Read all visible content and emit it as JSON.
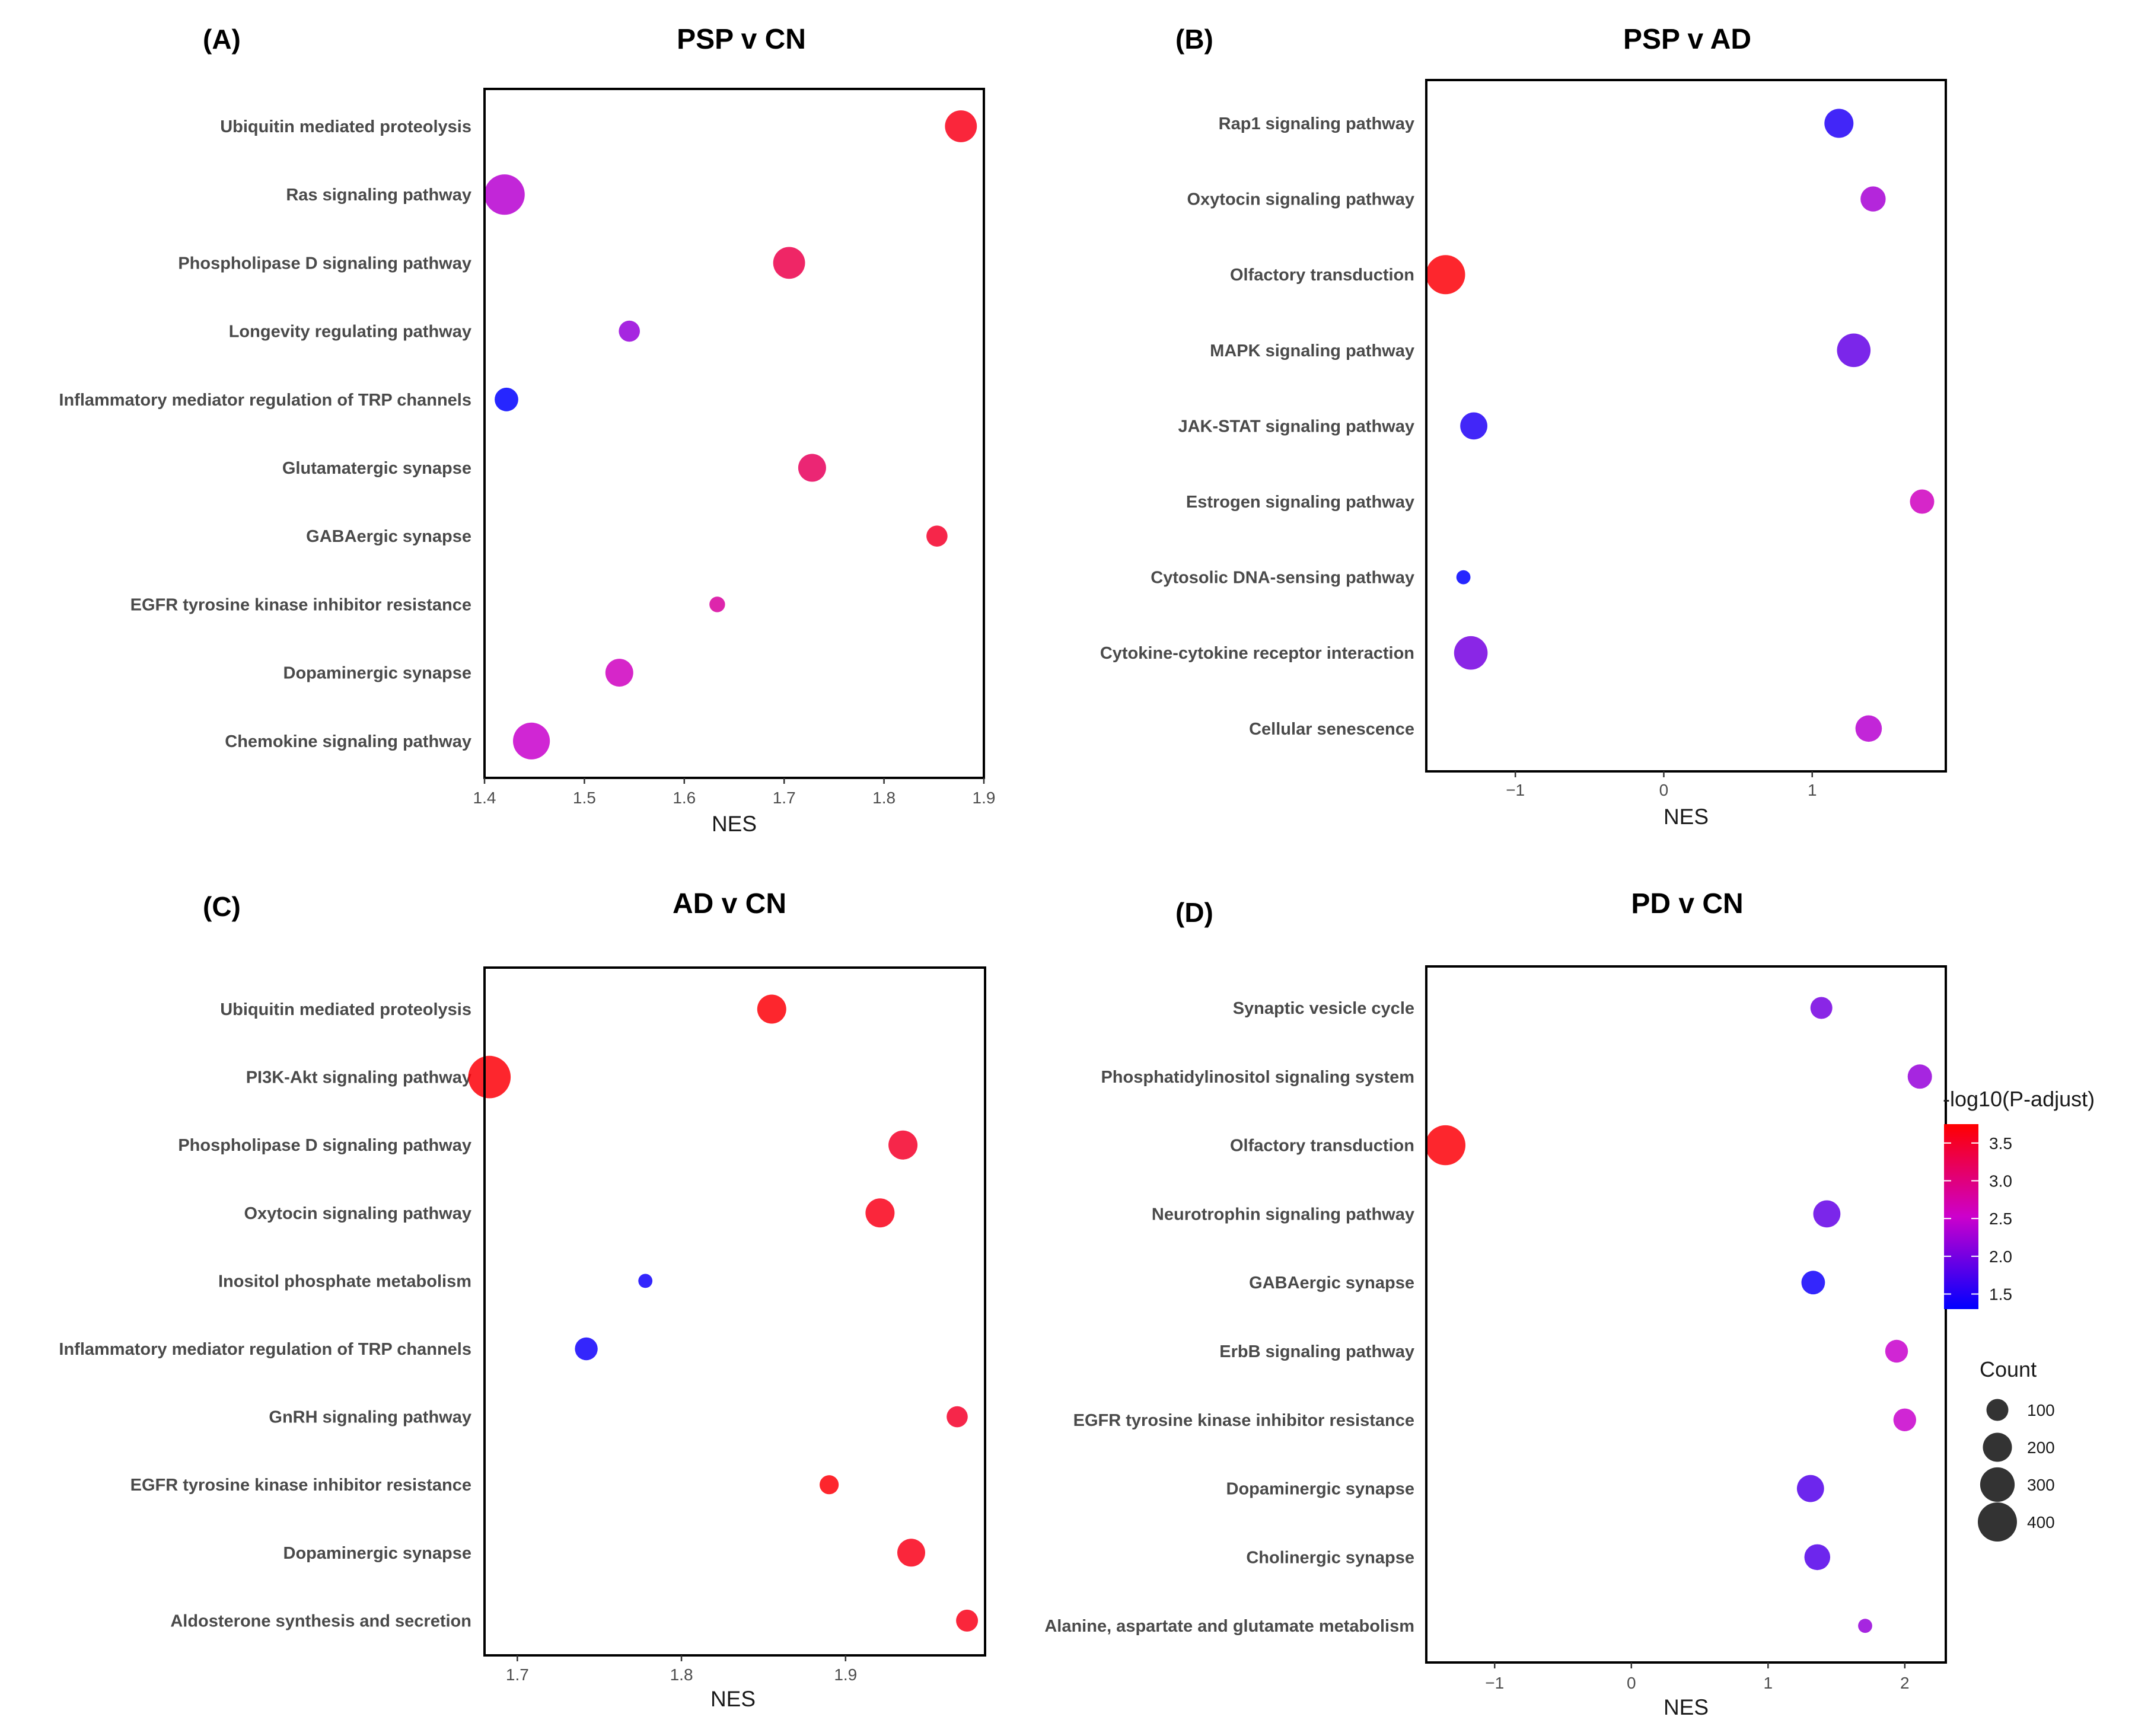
{
  "chart_data": [
    {
      "type": "scatter",
      "panel": "(A)",
      "title": "PSP v CN",
      "xlabel": "NES",
      "xlim": [
        1.4,
        1.9
      ],
      "xticks": [
        "1.4",
        "1.5",
        "1.6",
        "1.7",
        "1.8",
        "1.9"
      ],
      "xtick_values": [
        1.4,
        1.5,
        1.6,
        1.7,
        1.8,
        1.9
      ],
      "categories": [
        "Ubiquitin mediated proteolysis",
        "Ras signaling pathway",
        "Phospholipase D signaling pathway",
        "Longevity regulating pathway",
        "Inflammatory mediator regulation of TRP channels",
        "Glutamatergic synapse",
        "GABAergic synapse",
        "EGFR tyrosine kinase inhibitor resistance",
        "Dopaminergic synapse",
        "Chemokine signaling pathway"
      ],
      "nes": [
        1.877,
        1.42,
        1.705,
        1.545,
        1.422,
        1.728,
        1.853,
        1.633,
        1.535,
        1.447
      ],
      "neglog10_padj": [
        3.6,
        2.4,
        3.3,
        2.2,
        1.3,
        3.2,
        3.5,
        2.8,
        2.6,
        2.5
      ],
      "count": [
        250,
        430,
        250,
        90,
        120,
        180,
        90,
        40,
        180,
        350
      ]
    },
    {
      "type": "scatter",
      "panel": "(B)",
      "title": "PSP v AD",
      "xlabel": "NES",
      "xlim": [
        -1.6,
        1.9
      ],
      "xticks": [
        "−1",
        "0",
        "1"
      ],
      "xtick_values": [
        -1,
        0,
        1
      ],
      "categories": [
        "Rap1 signaling pathway",
        "Oxytocin signaling pathway",
        "Olfactory transduction",
        "MAPK signaling pathway",
        "JAK-STAT signaling pathway",
        "Estrogen signaling pathway",
        "Cytosolic DNA-sensing pathway",
        "Cytokine-cytokine receptor interaction",
        "Cellular senescence"
      ],
      "nes": [
        1.18,
        1.41,
        -1.47,
        1.28,
        -1.28,
        1.74,
        -1.35,
        -1.3,
        1.38
      ],
      "neglog10_padj": [
        1.5,
        2.3,
        3.7,
        1.9,
        1.5,
        2.6,
        1.3,
        2.0,
        2.4
      ],
      "count": [
        200,
        140,
        400,
        280,
        170,
        130,
        30,
        280,
        160
      ]
    },
    {
      "type": "scatter",
      "panel": "(C)",
      "title": "AD v CN",
      "xlabel": "NES",
      "xlim": [
        1.68,
        1.985
      ],
      "xticks": [
        "1.7",
        "1.8",
        "1.9"
      ],
      "xtick_values": [
        1.7,
        1.8,
        1.9
      ],
      "categories": [
        "Ubiquitin mediated proteolysis",
        "PI3K-Akt signaling pathway",
        "Phospholipase D signaling pathway",
        "Oxytocin signaling pathway",
        "Inositol phosphate metabolism",
        "Inflammatory mediator regulation of TRP channels",
        "GnRH signaling pathway",
        "EGFR tyrosine kinase inhibitor resistance",
        "Dopaminergic synapse",
        "Aldosterone synthesis and secretion"
      ],
      "nes": [
        1.855,
        1.683,
        1.935,
        1.921,
        1.778,
        1.742,
        1.968,
        1.89,
        1.94,
        1.974
      ],
      "neglog10_padj": [
        3.7,
        3.7,
        3.5,
        3.6,
        1.4,
        1.4,
        3.5,
        3.7,
        3.6,
        3.6
      ],
      "count": [
        200,
        480,
        200,
        200,
        30,
        110,
        90,
        70,
        180,
        100
      ]
    },
    {
      "type": "scatter",
      "panel": "(D)",
      "title": "PD v CN",
      "xlabel": "NES",
      "xlim": [
        -1.5,
        2.3
      ],
      "xticks": [
        "−1",
        "0",
        "1",
        "2"
      ],
      "xtick_values": [
        -1,
        0,
        1,
        2
      ],
      "categories": [
        "Synaptic vesicle cycle",
        "Phosphatidylinositol signaling system",
        "Olfactory transduction",
        "Neurotrophin signaling pathway",
        "GABAergic synapse",
        "ErbB signaling pathway",
        "EGFR tyrosine kinase inhibitor resistance",
        "Dopaminergic synapse",
        "Cholinergic synapse",
        "Alanine, aspartate and glutamate metabolism"
      ],
      "nes": [
        1.39,
        2.11,
        -1.36,
        1.43,
        1.33,
        1.94,
        2.0,
        1.31,
        1.36,
        1.71
      ],
      "neglog10_padj": [
        2.0,
        2.2,
        3.7,
        1.9,
        1.4,
        2.5,
        2.5,
        1.8,
        1.8,
        2.2
      ],
      "count": [
        100,
        130,
        420,
        170,
        120,
        110,
        110,
        170,
        150,
        30
      ]
    }
  ],
  "legend": {
    "color_title": "-log10(P-adjust)",
    "color_ticks": [
      "3.5",
      "3.0",
      "2.5",
      "2.0",
      "1.5"
    ],
    "color_tick_values": [
      3.5,
      3.0,
      2.5,
      2.0,
      1.5
    ],
    "color_range": [
      1.3,
      3.75
    ],
    "color_low": "#0000ff",
    "color_high": "#ff0000",
    "size_title": "Count",
    "size_labels": [
      "100",
      "200",
      "300",
      "400"
    ],
    "size_values": [
      100,
      200,
      300,
      400
    ]
  }
}
